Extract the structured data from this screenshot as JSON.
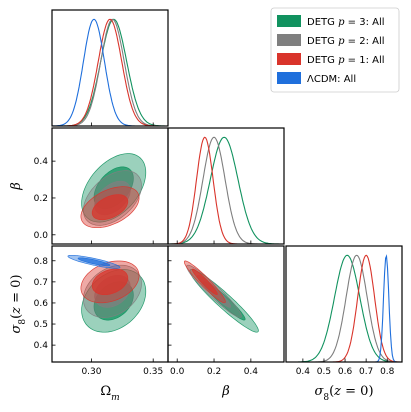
{
  "chart_data": {
    "type": "corner",
    "params": [
      {
        "key": "om",
        "label": "Ω_m",
        "range": [
          0.268,
          0.362
        ],
        "ticks": [
          0.3,
          0.35
        ],
        "tick_labels": [
          "0.30",
          "0.35"
        ]
      },
      {
        "key": "beta",
        "label": "β",
        "range": [
          -0.05,
          0.58
        ],
        "ticks": [
          0.0,
          0.2,
          0.4
        ],
        "tick_labels": [
          "0.0",
          "0.2",
          "0.4"
        ]
      },
      {
        "key": "s8",
        "label": "σ_8(z = 0)",
        "range": [
          0.32,
          0.87
        ],
        "ticks": [
          0.4,
          0.5,
          0.6,
          0.7,
          0.8
        ],
        "tick_labels": [
          "0.4",
          "0.5",
          "0.6",
          "0.7",
          "0.8"
        ]
      }
    ],
    "legend": {
      "placement": "top-right",
      "entries": [
        {
          "label": "DETG p = 3: All",
          "color": "#11925f"
        },
        {
          "label": "DETG p = 2: All",
          "color": "#7f7f7f"
        },
        {
          "label": "DETG p = 1: All",
          "color": "#d9342b"
        },
        {
          "label": "ΛCDM: All",
          "color": "#1f6fdc"
        }
      ]
    },
    "series": [
      {
        "name": "DETG p = 3: All",
        "color": "#11925f",
        "om": {
          "mean": 0.318,
          "sd": 0.0105
        },
        "beta": {
          "mean": 0.255,
          "sd": 0.075
        },
        "s8": {
          "mean": 0.61,
          "sd": 0.06
        },
        "corr": {
          "om_beta": 0.45,
          "om_s8": 0.3,
          "beta_s8": -0.95
        }
      },
      {
        "name": "DETG p = 2: All",
        "color": "#7f7f7f",
        "om": {
          "mean": 0.317,
          "sd": 0.0095
        },
        "beta": {
          "mean": 0.2,
          "sd": 0.06
        },
        "s8": {
          "mean": 0.655,
          "sd": 0.05
        },
        "corr": {
          "om_beta": 0.45,
          "om_s8": 0.3,
          "beta_s8": -0.95
        }
      },
      {
        "name": "DETG p = 1: All",
        "color": "#d9342b",
        "om": {
          "mean": 0.315,
          "sd": 0.0095
        },
        "beta": {
          "mean": 0.15,
          "sd": 0.045
        },
        "s8": {
          "mean": 0.7,
          "sd": 0.04
        },
        "corr": {
          "om_beta": 0.45,
          "om_s8": 0.3,
          "beta_s8": -0.95
        }
      },
      {
        "name": "ΛCDM: All",
        "color": "#1f6fdc",
        "om": {
          "mean": 0.302,
          "sd": 0.0085
        },
        "beta": null,
        "s8": {
          "mean": 0.795,
          "sd": 0.0125
        },
        "corr": {
          "om_s8": -0.85
        }
      }
    ]
  }
}
